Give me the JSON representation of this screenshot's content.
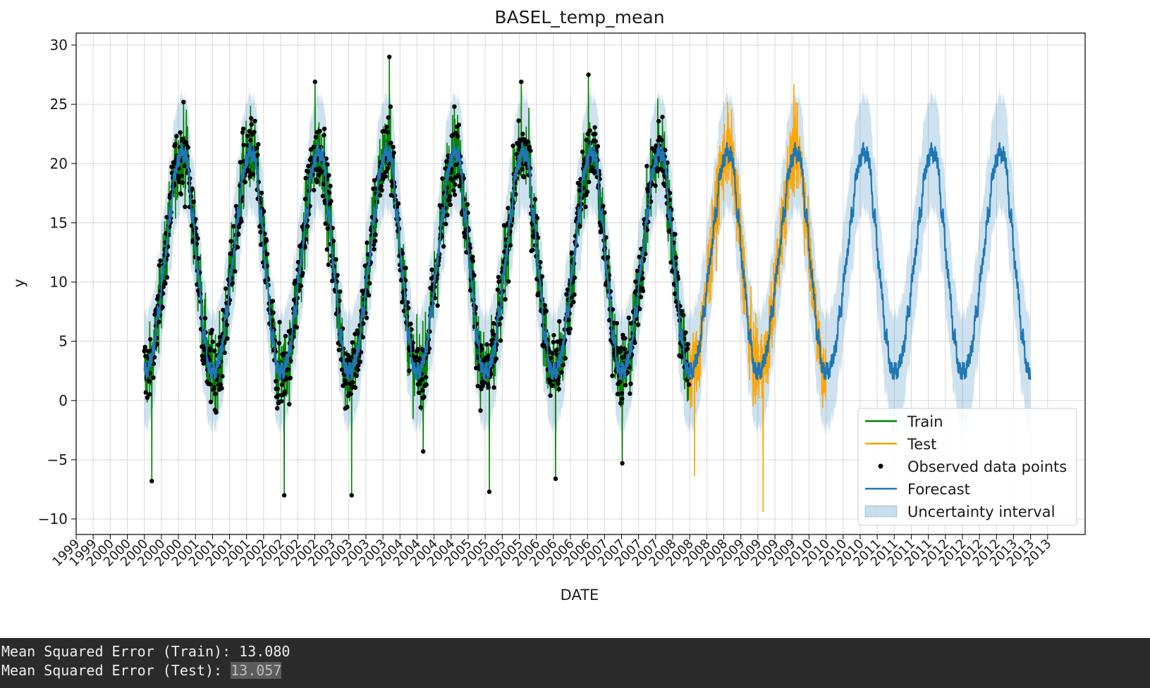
{
  "chart_data": {
    "type": "line",
    "title": "BASEL_temp_mean",
    "xlabel": "DATE",
    "ylabel": "y",
    "ylim": [
      -11,
      31
    ],
    "yticks": [
      -10,
      -5,
      0,
      5,
      10,
      15,
      20,
      25,
      30
    ],
    "yticklabels": [
      "−10",
      "−5",
      "0",
      "5",
      "10",
      "15",
      "20",
      "25",
      "30"
    ],
    "xrange": [
      1999.0,
      2013.8
    ],
    "xticklabels": [
      "1999",
      "1999",
      "2000",
      "2000",
      "2000",
      "2000",
      "2000",
      "2001",
      "2001",
      "2001",
      "2001",
      "2002",
      "2002",
      "2002",
      "2002",
      "2003",
      "2003",
      "2003",
      "2003",
      "2004",
      "2004",
      "2004",
      "2004",
      "2005",
      "2005",
      "2005",
      "2005",
      "2006",
      "2006",
      "2006",
      "2006",
      "2007",
      "2007",
      "2007",
      "2007",
      "2008",
      "2008",
      "2008",
      "2008",
      "2009",
      "2009",
      "2009",
      "2009",
      "2010",
      "2010",
      "2010",
      "2010",
      "2011",
      "2011",
      "2011",
      "2011",
      "2012",
      "2012",
      "2012",
      "2012",
      "2013",
      "2013",
      "2013"
    ],
    "grid": true,
    "legend_position": "lower-right",
    "train_range": [
      "2000-01-01",
      "2007-12-31"
    ],
    "test_range": [
      "2008-01-01",
      "2009-12-31"
    ],
    "forecast_range": [
      "2000-01-01",
      "2012-12-31"
    ],
    "series": [
      {
        "name": "Train",
        "kind": "line",
        "color": "#008000",
        "seasonal_profile": {
          "month_mean": [
            2.5,
            3.5,
            7.5,
            11.5,
            15.5,
            19.5,
            21.0,
            20.5,
            15.5,
            11.0,
            5.5,
            2.5
          ],
          "amplitude_of_daily_noise": 5.0
        },
        "annual_peaks": {
          "2000": 25.2,
          "2001": 24.9,
          "2002": 26.9,
          "2003": 29.0,
          "2004": 24.8,
          "2005": 26.9,
          "2006": 27.5,
          "2007": 25.5
        },
        "annual_troughs": {
          "2000": -6.8,
          "2001": -1.0,
          "2002": -8.0,
          "2003": -8.0,
          "2004": -4.3,
          "2005": -7.7,
          "2006": -6.6,
          "2007": -5.3
        }
      },
      {
        "name": "Test",
        "kind": "line",
        "color": "#ffa500",
        "annual_peaks": {
          "2008": 25.2,
          "2009": 26.7
        },
        "annual_troughs": {
          "2008": -6.4,
          "2009": -9.4
        }
      },
      {
        "name": "Observed data points",
        "kind": "scatter",
        "color": "#000000"
      },
      {
        "name": "Forecast",
        "kind": "line",
        "color": "#1f77b4",
        "seasonal_profile": {
          "month_mean": [
            2.5,
            4.0,
            7.5,
            11.5,
            15.5,
            19.5,
            21.0,
            20.5,
            15.5,
            10.5,
            5.5,
            2.5
          ]
        }
      },
      {
        "name": "Uncertainty interval",
        "kind": "band",
        "color": "#1f77b4",
        "half_width": 4.8
      }
    ]
  },
  "console": {
    "train_label": "Mean Squared Error (Train): ",
    "train_value": "13.080",
    "test_label": "Mean Squared Error (Test): ",
    "test_value": "13.057"
  }
}
